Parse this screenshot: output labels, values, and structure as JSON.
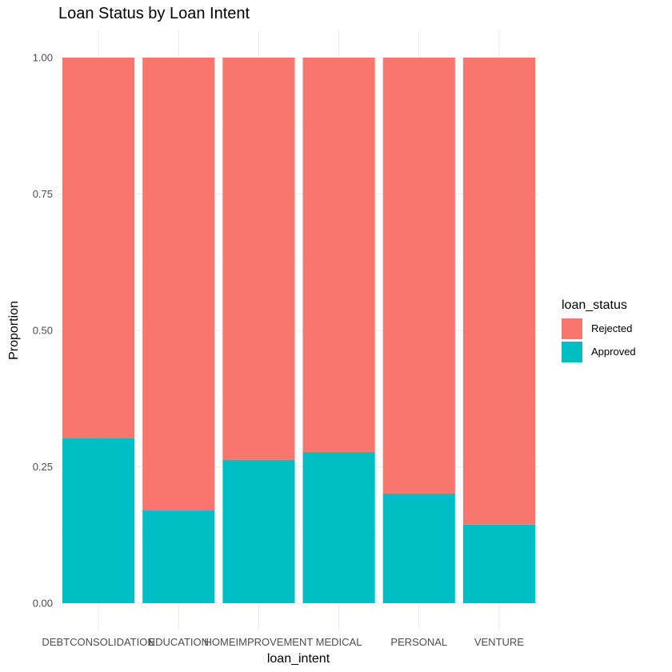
{
  "chart_data": {
    "type": "bar",
    "stacked": true,
    "title": "Loan Status by Loan Intent",
    "xlabel": "loan_intent",
    "ylabel": "Proportion",
    "categories": [
      "DEBTCONSOLIDATION",
      "EDUCATION",
      "HOMEIMPROVEMENT",
      "MEDICAL",
      "PERSONAL",
      "VENTURE"
    ],
    "series": [
      {
        "name": "Approved",
        "color": "#00BFC4",
        "values": [
          0.303,
          0.17,
          0.263,
          0.277,
          0.201,
          0.144
        ]
      },
      {
        "name": "Rejected",
        "color": "#F8766D",
        "values": [
          0.697,
          0.83,
          0.737,
          0.723,
          0.799,
          0.856
        ]
      }
    ],
    "ylim": [
      0,
      1
    ],
    "yticks": [
      0.0,
      0.25,
      0.5,
      0.75,
      1.0
    ],
    "ytick_labels": [
      "0.00",
      "0.25",
      "0.50",
      "0.75",
      "1.00"
    ],
    "grid": true,
    "legend": {
      "title": "loan_status",
      "position": "right",
      "entries": [
        {
          "label": "Rejected",
          "color": "#F8766D"
        },
        {
          "label": "Approved",
          "color": "#00BFC4"
        }
      ]
    }
  }
}
